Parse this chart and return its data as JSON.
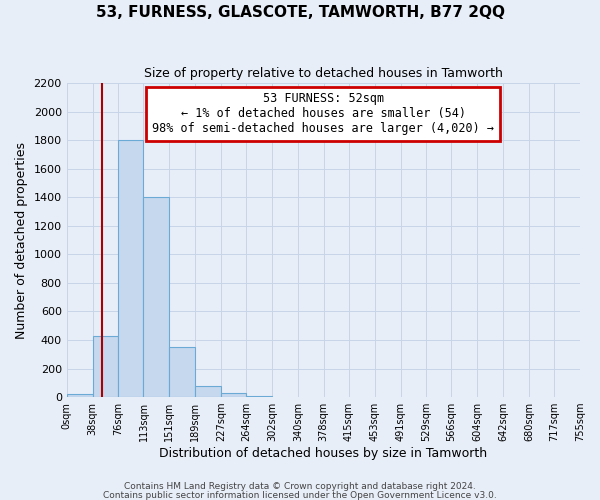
{
  "title": "53, FURNESS, GLASCOTE, TAMWORTH, B77 2QQ",
  "subtitle": "Size of property relative to detached houses in Tamworth",
  "xlabel": "Distribution of detached houses by size in Tamworth",
  "ylabel": "Number of detached properties",
  "bin_edges": [
    0,
    38,
    76,
    113,
    151,
    189,
    227,
    264,
    302,
    340,
    378,
    415,
    453,
    491,
    529,
    566,
    604,
    642,
    680,
    717,
    755
  ],
  "bin_labels": [
    "0sqm",
    "38sqm",
    "76sqm",
    "113sqm",
    "151sqm",
    "189sqm",
    "227sqm",
    "264sqm",
    "302sqm",
    "340sqm",
    "378sqm",
    "415sqm",
    "453sqm",
    "491sqm",
    "529sqm",
    "566sqm",
    "604sqm",
    "642sqm",
    "680sqm",
    "717sqm",
    "755sqm"
  ],
  "counts": [
    20,
    430,
    1800,
    1400,
    350,
    80,
    30,
    10,
    0,
    0,
    0,
    0,
    0,
    0,
    0,
    0,
    0,
    0,
    0,
    0
  ],
  "bar_color": "#c5d8ee",
  "bar_edge_color": "#6aaad4",
  "vline_color": "#aa0000",
  "vline_x": 52,
  "annotation_line1": "53 FURNESS: 52sqm",
  "annotation_line2": "← 1% of detached houses are smaller (54)",
  "annotation_line3": "98% of semi-detached houses are larger (4,020) →",
  "annotation_box_color": "#ffffff",
  "annotation_box_edge": "#cc0000",
  "ylim": [
    0,
    2200
  ],
  "yticks": [
    0,
    200,
    400,
    600,
    800,
    1000,
    1200,
    1400,
    1600,
    1800,
    2000,
    2200
  ],
  "grid_color": "#c8d4e8",
  "background_color": "#e8eef8",
  "footer_line1": "Contains HM Land Registry data © Crown copyright and database right 2024.",
  "footer_line2": "Contains public sector information licensed under the Open Government Licence v3.0."
}
